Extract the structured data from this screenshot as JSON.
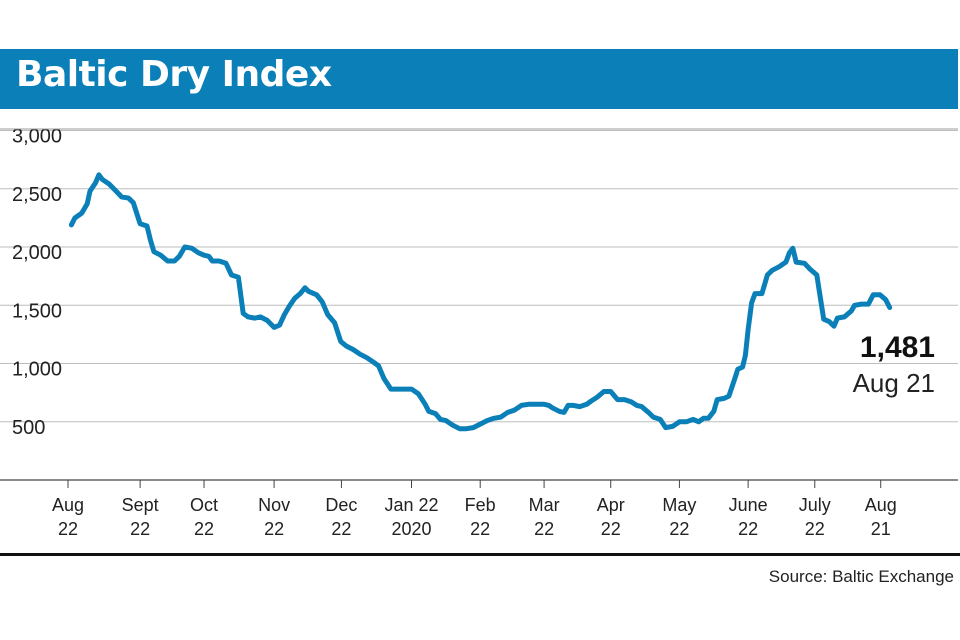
{
  "title": "Baltic Dry Index",
  "source": "Source: Baltic Exchange",
  "colors": {
    "banner": "#0b80b8",
    "line": "#0b80b8",
    "grid": "#bdbdbd"
  },
  "chart_data": {
    "type": "line",
    "title": "Baltic Dry Index",
    "xlabel": "",
    "ylabel": "",
    "ylim": [
      0,
      3000
    ],
    "yticks": [
      500,
      1000,
      1500,
      2000,
      2500,
      3000
    ],
    "ytick_labels": [
      "500",
      "1,000",
      "1,500",
      "2,000",
      "2,500",
      "3,000"
    ],
    "grid": true,
    "x_ticks": [
      {
        "t": 0,
        "label": [
          "Aug",
          "22"
        ]
      },
      {
        "t": 1.05,
        "label": [
          "Sept",
          "22"
        ]
      },
      {
        "t": 1.98,
        "label": [
          "Oct",
          "22"
        ]
      },
      {
        "t": 3.0,
        "label": [
          "Nov",
          "22"
        ]
      },
      {
        "t": 3.98,
        "label": [
          "Dec",
          "22"
        ]
      },
      {
        "t": 5.0,
        "label": [
          "Jan 22",
          "2020"
        ]
      },
      {
        "t": 6.0,
        "label": [
          "Feb",
          "22"
        ]
      },
      {
        "t": 6.93,
        "label": [
          "Mar",
          "22"
        ]
      },
      {
        "t": 7.9,
        "label": [
          "Apr",
          "22"
        ]
      },
      {
        "t": 8.9,
        "label": [
          "May",
          "22"
        ]
      },
      {
        "t": 9.9,
        "label": [
          "June",
          "22"
        ]
      },
      {
        "t": 10.87,
        "label": [
          "July",
          "22"
        ]
      },
      {
        "t": 11.83,
        "label": [
          "Aug",
          "21"
        ]
      }
    ],
    "series": [
      {
        "values": [
          [
            0.05,
            2190
          ],
          [
            0.1,
            2250
          ],
          [
            0.2,
            2290
          ],
          [
            0.28,
            2370
          ],
          [
            0.32,
            2480
          ],
          [
            0.4,
            2550
          ],
          [
            0.45,
            2620
          ],
          [
            0.5,
            2580
          ],
          [
            0.6,
            2540
          ],
          [
            0.7,
            2480
          ],
          [
            0.78,
            2430
          ],
          [
            0.88,
            2420
          ],
          [
            0.95,
            2380
          ],
          [
            1.05,
            2200
          ],
          [
            1.15,
            2180
          ],
          [
            1.2,
            2060
          ],
          [
            1.25,
            1960
          ],
          [
            1.35,
            1930
          ],
          [
            1.45,
            1880
          ],
          [
            1.55,
            1880
          ],
          [
            1.62,
            1920
          ],
          [
            1.7,
            2000
          ],
          [
            1.8,
            1990
          ],
          [
            1.9,
            1950
          ],
          [
            1.98,
            1930
          ],
          [
            2.05,
            1920
          ],
          [
            2.1,
            1880
          ],
          [
            2.2,
            1880
          ],
          [
            2.3,
            1860
          ],
          [
            2.38,
            1760
          ],
          [
            2.48,
            1740
          ],
          [
            2.55,
            1430
          ],
          [
            2.62,
            1400
          ],
          [
            2.72,
            1390
          ],
          [
            2.8,
            1400
          ],
          [
            2.9,
            1370
          ],
          [
            3.0,
            1310
          ],
          [
            3.08,
            1330
          ],
          [
            3.15,
            1420
          ],
          [
            3.22,
            1490
          ],
          [
            3.3,
            1560
          ],
          [
            3.38,
            1600
          ],
          [
            3.45,
            1650
          ],
          [
            3.5,
            1620
          ],
          [
            3.62,
            1590
          ],
          [
            3.7,
            1530
          ],
          [
            3.78,
            1420
          ],
          [
            3.88,
            1350
          ],
          [
            3.97,
            1190
          ],
          [
            4.05,
            1150
          ],
          [
            4.15,
            1120
          ],
          [
            4.25,
            1080
          ],
          [
            4.35,
            1050
          ],
          [
            4.45,
            1010
          ],
          [
            4.52,
            980
          ],
          [
            4.6,
            870
          ],
          [
            4.7,
            780
          ],
          [
            4.8,
            780
          ],
          [
            5.0,
            780
          ],
          [
            5.1,
            740
          ],
          [
            5.2,
            650
          ],
          [
            5.25,
            590
          ],
          [
            5.35,
            570
          ],
          [
            5.42,
            520
          ],
          [
            5.5,
            510
          ],
          [
            5.6,
            470
          ],
          [
            5.7,
            440
          ],
          [
            5.8,
            440
          ],
          [
            5.9,
            450
          ],
          [
            6.0,
            480
          ],
          [
            6.1,
            510
          ],
          [
            6.2,
            530
          ],
          [
            6.3,
            540
          ],
          [
            6.4,
            580
          ],
          [
            6.5,
            600
          ],
          [
            6.6,
            640
          ],
          [
            6.7,
            650
          ],
          [
            6.93,
            650
          ],
          [
            7.0,
            640
          ],
          [
            7.05,
            620
          ],
          [
            7.15,
            590
          ],
          [
            7.22,
            580
          ],
          [
            7.28,
            640
          ],
          [
            7.35,
            640
          ],
          [
            7.45,
            630
          ],
          [
            7.55,
            650
          ],
          [
            7.62,
            680
          ],
          [
            7.7,
            710
          ],
          [
            7.8,
            760
          ],
          [
            7.9,
            760
          ],
          [
            8.0,
            690
          ],
          [
            8.1,
            690
          ],
          [
            8.2,
            670
          ],
          [
            8.28,
            640
          ],
          [
            8.35,
            630
          ],
          [
            8.45,
            580
          ],
          [
            8.52,
            540
          ],
          [
            8.62,
            520
          ],
          [
            8.7,
            450
          ],
          [
            8.8,
            460
          ],
          [
            8.9,
            500
          ],
          [
            9.0,
            500
          ],
          [
            9.1,
            520
          ],
          [
            9.18,
            500
          ],
          [
            9.25,
            530
          ],
          [
            9.32,
            530
          ],
          [
            9.4,
            590
          ],
          [
            9.45,
            690
          ],
          [
            9.55,
            700
          ],
          [
            9.62,
            720
          ],
          [
            9.7,
            860
          ],
          [
            9.75,
            950
          ],
          [
            9.82,
            970
          ],
          [
            9.86,
            1070
          ],
          [
            9.9,
            1290
          ],
          [
            9.95,
            1520
          ],
          [
            10.0,
            1600
          ],
          [
            10.1,
            1600
          ],
          [
            10.18,
            1760
          ],
          [
            10.25,
            1800
          ],
          [
            10.35,
            1830
          ],
          [
            10.45,
            1870
          ],
          [
            10.5,
            1950
          ],
          [
            10.55,
            1990
          ],
          [
            10.6,
            1870
          ],
          [
            10.72,
            1860
          ],
          [
            10.8,
            1810
          ],
          [
            10.9,
            1760
          ],
          [
            11.0,
            1380
          ],
          [
            11.08,
            1360
          ],
          [
            11.15,
            1320
          ],
          [
            11.2,
            1390
          ],
          [
            11.3,
            1400
          ],
          [
            11.4,
            1450
          ],
          [
            11.45,
            1500
          ],
          [
            11.55,
            1510
          ],
          [
            11.65,
            1510
          ],
          [
            11.72,
            1590
          ],
          [
            11.82,
            1590
          ],
          [
            11.9,
            1550
          ],
          [
            11.96,
            1481
          ]
        ]
      }
    ],
    "annotation": {
      "value": "1,481",
      "date": "Aug 21"
    }
  }
}
